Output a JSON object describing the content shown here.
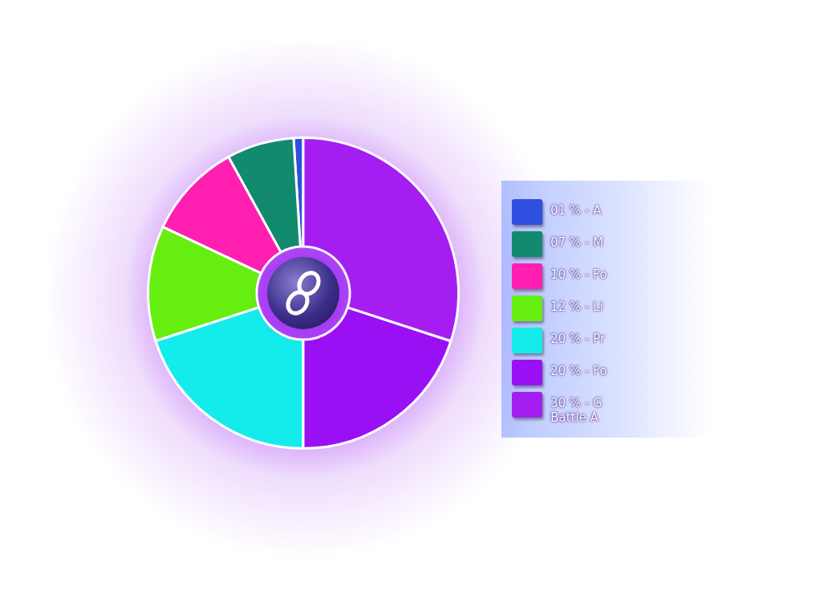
{
  "chart_data": {
    "type": "doughnut",
    "categories": [
      "01 % - A",
      "07 % - M",
      "10 % - Fo",
      "12 % - Li",
      "20 % - Pr",
      "20 % - Fo",
      [
        "30 % - G",
        "Battle A"
      ]
    ],
    "values": [
      1,
      7,
      10,
      12,
      20,
      20,
      30
    ],
    "colors": [
      "#2f4fe0",
      "#128a70",
      "#ff1fb0",
      "#66ee11",
      "#14ecec",
      "#9a10f5",
      "#a41ef2"
    ],
    "legend": "right"
  }
}
